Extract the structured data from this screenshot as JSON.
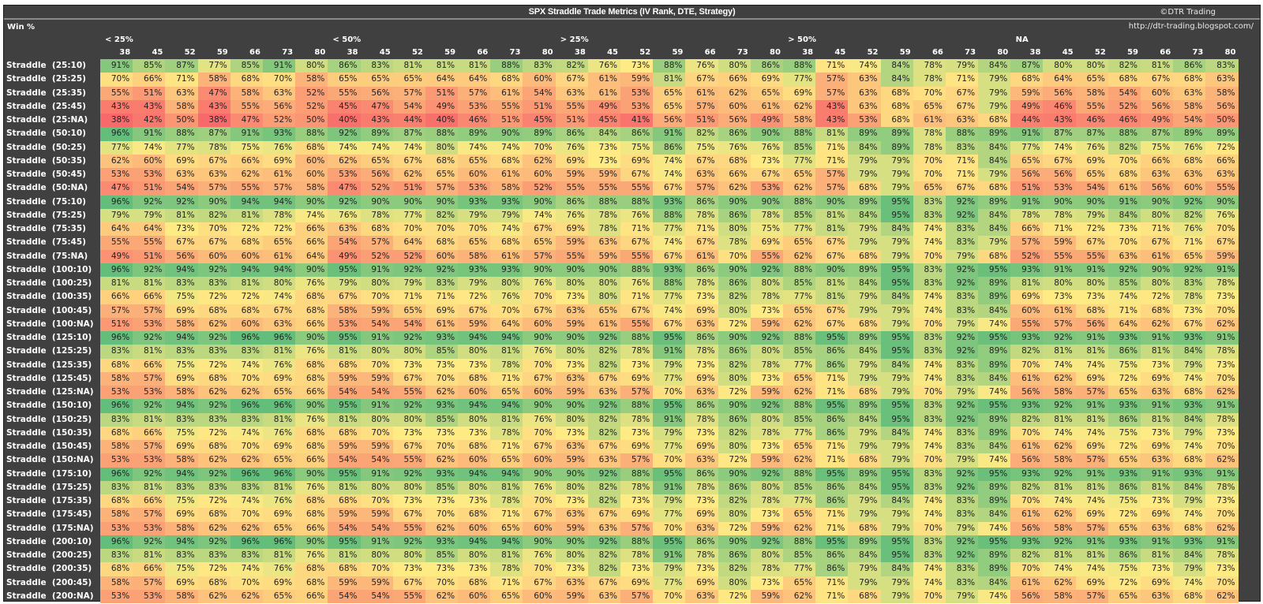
{
  "header": {
    "title": "SPX Straddle Trade Metrics  (IV Rank, DTE, Strategy)",
    "copyright": "©DTR Trading",
    "url": "http://dtr-trading.blogspot.com/",
    "metric": "Win %"
  },
  "colors": {
    "low": "#f8696b",
    "mid": "#ffeb84",
    "high": "#63be7b",
    "background": "#404040",
    "header_text": "#ffffff"
  },
  "chart_data": {
    "type": "heatmap",
    "title": "SPX Straddle Trade Metrics  (IV Rank, DTE, Strategy)",
    "metric": "Win %",
    "value_unit": "%",
    "color_scale": [
      "#f8696b",
      "#ffeb84",
      "#63be7b"
    ],
    "column_groups": [
      "< 25%",
      "< 50%",
      "> 25%",
      "> 50%",
      "NA"
    ],
    "column_group_axis": "IV Rank",
    "columns": [
      "38",
      "45",
      "52",
      "59",
      "66",
      "73",
      "80"
    ],
    "column_axis": "DTE",
    "rows": [
      "Straddle  (25:10)",
      "Straddle  (25:25)",
      "Straddle  (25:35)",
      "Straddle  (25:45)",
      "Straddle  (25:NA)",
      "Straddle  (50:10)",
      "Straddle  (50:25)",
      "Straddle  (50:35)",
      "Straddle  (50:45)",
      "Straddle  (50:NA)",
      "Straddle  (75:10)",
      "Straddle  (75:25)",
      "Straddle  (75:35)",
      "Straddle  (75:45)",
      "Straddle  (75:NA)",
      "Straddle  (100:10)",
      "Straddle  (100:25)",
      "Straddle  (100:35)",
      "Straddle  (100:45)",
      "Straddle  (100:NA)",
      "Straddle  (125:10)",
      "Straddle  (125:25)",
      "Straddle  (125:35)",
      "Straddle  (125:45)",
      "Straddle  (125:NA)",
      "Straddle  (150:10)",
      "Straddle  (150:25)",
      "Straddle  (150:35)",
      "Straddle  (150:45)",
      "Straddle  (150:NA)",
      "Straddle  (175:10)",
      "Straddle  (175:25)",
      "Straddle  (175:35)",
      "Straddle  (175:45)",
      "Straddle  (175:NA)",
      "Straddle  (200:10)",
      "Straddle  (200:25)",
      "Straddle  (200:35)",
      "Straddle  (200:45)",
      "Straddle  (200:NA)"
    ],
    "values": [
      [
        91,
        85,
        87,
        77,
        85,
        91,
        80,
        86,
        83,
        81,
        81,
        81,
        88,
        83,
        82,
        76,
        73,
        88,
        76,
        80,
        86,
        88,
        71,
        74,
        84,
        78,
        79,
        84,
        87,
        80,
        80,
        82,
        81,
        86,
        83
      ],
      [
        70,
        66,
        71,
        58,
        68,
        70,
        58,
        65,
        65,
        65,
        64,
        64,
        68,
        60,
        67,
        61,
        59,
        81,
        67,
        66,
        69,
        77,
        57,
        63,
        84,
        78,
        71,
        79,
        68,
        64,
        65,
        68,
        67,
        68,
        63
      ],
      [
        55,
        51,
        63,
        47,
        58,
        63,
        52,
        55,
        56,
        57,
        51,
        57,
        61,
        54,
        63,
        61,
        53,
        65,
        61,
        62,
        65,
        69,
        57,
        63,
        68,
        70,
        67,
        79,
        59,
        56,
        58,
        54,
        60,
        63,
        58
      ],
      [
        43,
        43,
        58,
        43,
        55,
        56,
        52,
        45,
        47,
        54,
        49,
        53,
        55,
        51,
        55,
        49,
        53,
        65,
        57,
        60,
        61,
        62,
        43,
        63,
        68,
        65,
        67,
        79,
        49,
        46,
        55,
        52,
        56,
        58,
        56
      ],
      [
        38,
        42,
        50,
        38,
        47,
        52,
        50,
        40,
        43,
        44,
        40,
        46,
        51,
        45,
        51,
        45,
        41,
        56,
        51,
        56,
        49,
        58,
        43,
        53,
        68,
        61,
        63,
        68,
        44,
        43,
        46,
        46,
        49,
        54,
        50
      ],
      [
        96,
        91,
        88,
        87,
        91,
        93,
        88,
        92,
        89,
        87,
        88,
        89,
        90,
        89,
        86,
        84,
        86,
        91,
        82,
        86,
        90,
        88,
        81,
        89,
        89,
        78,
        88,
        89,
        91,
        87,
        87,
        88,
        87,
        89,
        89
      ],
      [
        77,
        74,
        77,
        78,
        75,
        76,
        68,
        74,
        74,
        74,
        80,
        74,
        74,
        70,
        76,
        73,
        75,
        86,
        75,
        76,
        76,
        85,
        71,
        84,
        89,
        78,
        83,
        84,
        77,
        74,
        76,
        82,
        75,
        76,
        72
      ],
      [
        62,
        60,
        69,
        67,
        66,
        69,
        60,
        62,
        65,
        67,
        68,
        65,
        68,
        62,
        69,
        73,
        69,
        74,
        67,
        68,
        73,
        77,
        71,
        79,
        79,
        70,
        71,
        84,
        65,
        67,
        69,
        70,
        66,
        68,
        66
      ],
      [
        53,
        53,
        63,
        63,
        62,
        61,
        60,
        53,
        56,
        62,
        65,
        60,
        61,
        60,
        59,
        59,
        67,
        74,
        63,
        66,
        67,
        65,
        57,
        79,
        79,
        70,
        71,
        79,
        56,
        56,
        65,
        68,
        63,
        63,
        63
      ],
      [
        47,
        51,
        54,
        57,
        55,
        57,
        58,
        47,
        52,
        51,
        57,
        53,
        58,
        52,
        55,
        55,
        55,
        67,
        57,
        62,
        53,
        62,
        57,
        68,
        79,
        65,
        67,
        68,
        51,
        53,
        54,
        61,
        56,
        60,
        55
      ],
      [
        96,
        92,
        92,
        90,
        94,
        94,
        90,
        92,
        90,
        90,
        90,
        93,
        93,
        90,
        86,
        88,
        88,
        93,
        86,
        90,
        90,
        88,
        90,
        89,
        95,
        83,
        92,
        89,
        91,
        90,
        90,
        91,
        90,
        92,
        90
      ],
      [
        79,
        79,
        81,
        82,
        81,
        78,
        74,
        76,
        78,
        77,
        82,
        79,
        79,
        74,
        76,
        78,
        76,
        88,
        78,
        86,
        78,
        85,
        81,
        84,
        95,
        83,
        92,
        84,
        78,
        78,
        79,
        84,
        80,
        82,
        76
      ],
      [
        64,
        64,
        73,
        70,
        72,
        72,
        66,
        63,
        68,
        70,
        70,
        70,
        74,
        67,
        69,
        78,
        71,
        77,
        71,
        80,
        75,
        77,
        81,
        79,
        84,
        74,
        83,
        84,
        66,
        71,
        72,
        73,
        71,
        76,
        70
      ],
      [
        55,
        55,
        67,
        67,
        68,
        65,
        66,
        54,
        57,
        64,
        68,
        65,
        68,
        65,
        59,
        63,
        67,
        74,
        67,
        78,
        69,
        65,
        67,
        79,
        79,
        74,
        83,
        79,
        57,
        59,
        67,
        70,
        67,
        71,
        67
      ],
      [
        49,
        51,
        56,
        60,
        60,
        61,
        64,
        49,
        52,
        52,
        60,
        58,
        61,
        57,
        55,
        59,
        55,
        67,
        61,
        70,
        55,
        62,
        67,
        68,
        79,
        70,
        79,
        68,
        52,
        55,
        55,
        63,
        61,
        65,
        59
      ],
      [
        96,
        92,
        94,
        92,
        94,
        94,
        90,
        95,
        91,
        92,
        92,
        93,
        93,
        90,
        90,
        90,
        88,
        93,
        86,
        90,
        92,
        88,
        90,
        89,
        95,
        83,
        92,
        95,
        93,
        91,
        91,
        92,
        90,
        92,
        91
      ],
      [
        81,
        81,
        83,
        83,
        81,
        80,
        76,
        79,
        80,
        79,
        83,
        79,
        80,
        76,
        80,
        80,
        76,
        88,
        78,
        86,
        80,
        85,
        81,
        84,
        95,
        83,
        92,
        89,
        81,
        80,
        80,
        85,
        80,
        83,
        78
      ],
      [
        66,
        66,
        75,
        72,
        72,
        74,
        68,
        67,
        70,
        71,
        71,
        72,
        76,
        70,
        73,
        80,
        71,
        77,
        73,
        82,
        78,
        77,
        81,
        79,
        84,
        74,
        83,
        89,
        69,
        73,
        73,
        74,
        72,
        78,
        73
      ],
      [
        57,
        57,
        69,
        68,
        68,
        67,
        68,
        58,
        59,
        65,
        69,
        67,
        70,
        67,
        63,
        65,
        67,
        74,
        69,
        80,
        73,
        65,
        67,
        79,
        79,
        74,
        83,
        84,
        60,
        61,
        68,
        71,
        68,
        73,
        70
      ],
      [
        51,
        53,
        58,
        62,
        60,
        63,
        66,
        53,
        54,
        54,
        61,
        59,
        64,
        60,
        59,
        61,
        55,
        67,
        63,
        72,
        59,
        62,
        67,
        68,
        79,
        70,
        79,
        74,
        55,
        57,
        56,
        64,
        62,
        67,
        62
      ],
      [
        96,
        92,
        94,
        92,
        96,
        96,
        90,
        95,
        91,
        92,
        93,
        94,
        94,
        90,
        90,
        92,
        88,
        95,
        86,
        90,
        92,
        88,
        95,
        89,
        95,
        83,
        92,
        95,
        93,
        92,
        91,
        93,
        91,
        93,
        91
      ],
      [
        83,
        81,
        83,
        83,
        83,
        81,
        76,
        81,
        80,
        80,
        85,
        80,
        81,
        76,
        80,
        82,
        78,
        91,
        78,
        86,
        80,
        85,
        86,
        84,
        95,
        83,
        92,
        89,
        82,
        81,
        81,
        86,
        81,
        84,
        78
      ],
      [
        68,
        66,
        75,
        72,
        74,
        76,
        68,
        68,
        70,
        73,
        73,
        73,
        78,
        70,
        73,
        82,
        73,
        79,
        73,
        82,
        78,
        77,
        86,
        79,
        84,
        74,
        83,
        89,
        70,
        74,
        74,
        75,
        73,
        79,
        73
      ],
      [
        58,
        57,
        69,
        68,
        70,
        69,
        68,
        59,
        59,
        67,
        70,
        68,
        71,
        67,
        63,
        67,
        69,
        77,
        69,
        80,
        73,
        65,
        71,
        79,
        79,
        74,
        83,
        84,
        61,
        62,
        69,
        72,
        69,
        74,
        70
      ],
      [
        53,
        53,
        58,
        62,
        62,
        65,
        66,
        54,
        54,
        55,
        62,
        60,
        65,
        60,
        59,
        63,
        57,
        70,
        63,
        72,
        59,
        62,
        71,
        68,
        79,
        70,
        79,
        74,
        56,
        58,
        57,
        65,
        63,
        68,
        62
      ],
      [
        96,
        92,
        94,
        92,
        96,
        96,
        90,
        95,
        91,
        92,
        93,
        94,
        94,
        90,
        90,
        92,
        88,
        95,
        86,
        90,
        92,
        88,
        95,
        89,
        95,
        83,
        92,
        95,
        93,
        92,
        91,
        93,
        91,
        93,
        91
      ],
      [
        83,
        81,
        83,
        83,
        83,
        81,
        76,
        81,
        80,
        80,
        85,
        80,
        81,
        76,
        80,
        82,
        78,
        91,
        78,
        86,
        80,
        85,
        86,
        84,
        95,
        83,
        92,
        89,
        82,
        81,
        81,
        86,
        81,
        84,
        78
      ],
      [
        68,
        66,
        75,
        72,
        74,
        76,
        68,
        68,
        70,
        73,
        73,
        73,
        78,
        70,
        73,
        82,
        73,
        79,
        73,
        82,
        78,
        77,
        86,
        79,
        84,
        74,
        83,
        89,
        70,
        74,
        74,
        75,
        73,
        79,
        73
      ],
      [
        58,
        57,
        69,
        68,
        70,
        69,
        68,
        59,
        59,
        67,
        70,
        68,
        71,
        67,
        63,
        67,
        69,
        77,
        69,
        80,
        73,
        65,
        71,
        79,
        79,
        74,
        83,
        84,
        61,
        62,
        69,
        72,
        69,
        74,
        70
      ],
      [
        53,
        53,
        58,
        62,
        62,
        65,
        66,
        54,
        54,
        55,
        62,
        60,
        65,
        60,
        59,
        63,
        57,
        70,
        63,
        72,
        59,
        62,
        71,
        68,
        79,
        70,
        79,
        74,
        56,
        58,
        57,
        65,
        63,
        68,
        62
      ],
      [
        96,
        92,
        94,
        92,
        96,
        96,
        90,
        95,
        91,
        92,
        93,
        94,
        94,
        90,
        90,
        92,
        88,
        95,
        86,
        90,
        92,
        88,
        95,
        89,
        95,
        83,
        92,
        95,
        93,
        92,
        91,
        93,
        91,
        93,
        91
      ],
      [
        83,
        81,
        83,
        83,
        83,
        81,
        76,
        81,
        80,
        80,
        85,
        80,
        81,
        76,
        80,
        82,
        78,
        91,
        78,
        86,
        80,
        85,
        86,
        84,
        95,
        83,
        92,
        89,
        82,
        81,
        81,
        86,
        81,
        84,
        78
      ],
      [
        68,
        66,
        75,
        72,
        74,
        76,
        68,
        68,
        70,
        73,
        73,
        73,
        78,
        70,
        73,
        82,
        73,
        79,
        73,
        82,
        78,
        77,
        86,
        79,
        84,
        74,
        83,
        89,
        70,
        74,
        74,
        75,
        73,
        79,
        73
      ],
      [
        58,
        57,
        69,
        68,
        70,
        69,
        68,
        59,
        59,
        67,
        70,
        68,
        71,
        67,
        63,
        67,
        69,
        77,
        69,
        80,
        73,
        65,
        71,
        79,
        79,
        74,
        83,
        84,
        61,
        62,
        69,
        72,
        69,
        74,
        70
      ],
      [
        53,
        53,
        58,
        62,
        62,
        65,
        66,
        54,
        54,
        55,
        62,
        60,
        65,
        60,
        59,
        63,
        57,
        70,
        63,
        72,
        59,
        62,
        71,
        68,
        79,
        70,
        79,
        74,
        56,
        58,
        57,
        65,
        63,
        68,
        62
      ],
      [
        96,
        92,
        94,
        92,
        96,
        96,
        90,
        95,
        91,
        92,
        93,
        94,
        94,
        90,
        90,
        92,
        88,
        95,
        86,
        90,
        92,
        88,
        95,
        89,
        95,
        83,
        92,
        95,
        93,
        92,
        91,
        93,
        91,
        93,
        91
      ],
      [
        83,
        81,
        83,
        83,
        83,
        81,
        76,
        81,
        80,
        80,
        85,
        80,
        81,
        76,
        80,
        82,
        78,
        91,
        78,
        86,
        80,
        85,
        86,
        84,
        95,
        83,
        92,
        89,
        82,
        81,
        81,
        86,
        81,
        84,
        78
      ],
      [
        68,
        66,
        75,
        72,
        74,
        76,
        68,
        68,
        70,
        73,
        73,
        73,
        78,
        70,
        73,
        82,
        73,
        79,
        73,
        82,
        78,
        77,
        86,
        79,
        84,
        74,
        83,
        89,
        70,
        74,
        74,
        75,
        73,
        79,
        73
      ],
      [
        58,
        57,
        69,
        68,
        70,
        69,
        68,
        59,
        59,
        67,
        70,
        68,
        71,
        67,
        63,
        67,
        69,
        77,
        69,
        80,
        73,
        65,
        71,
        79,
        79,
        74,
        83,
        84,
        61,
        62,
        69,
        72,
        69,
        74,
        70
      ],
      [
        53,
        53,
        58,
        62,
        62,
        65,
        66,
        54,
        54,
        55,
        62,
        60,
        65,
        60,
        59,
        63,
        57,
        70,
        63,
        72,
        59,
        62,
        71,
        68,
        79,
        70,
        79,
        74,
        56,
        58,
        57,
        65,
        63,
        68,
        62
      ]
    ],
    "value_range": [
      38,
      96
    ]
  }
}
